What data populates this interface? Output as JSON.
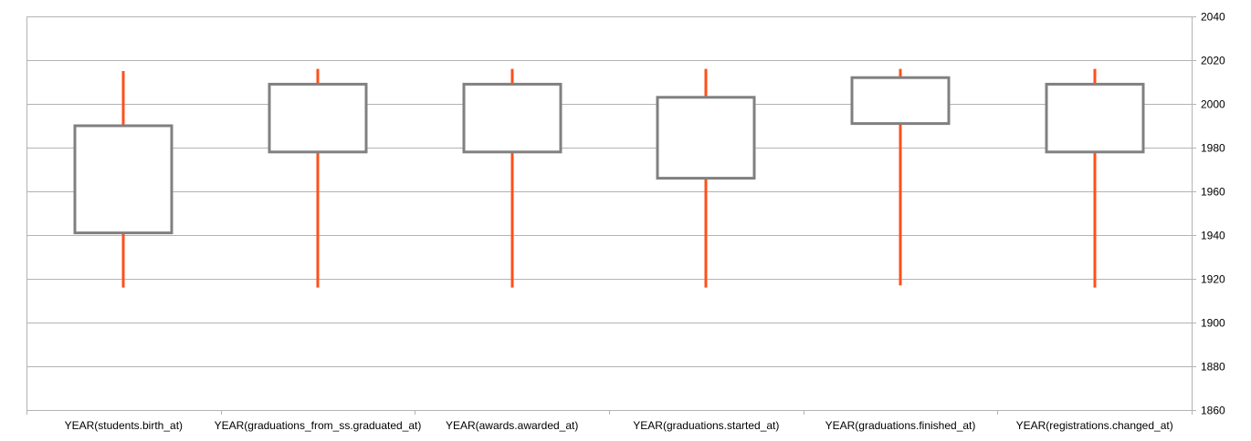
{
  "chart_data": {
    "type": "candlestick",
    "categories": [
      "YEAR(students.birth_at)",
      "YEAR(graduations_from_ss.graduated_at)",
      "YEAR(awards.awarded_at)",
      "YEAR(graduations.started_at)",
      "YEAR(graduations.finished_at)",
      "YEAR(registrations.changed_at)"
    ],
    "series": [
      {
        "low": [
          1916,
          1916,
          1916,
          1916,
          1917,
          1916
        ],
        "q1": [
          1941,
          1978,
          1978,
          1966,
          1991,
          1978
        ],
        "q3": [
          1990,
          2009,
          2009,
          2003,
          2012,
          2009
        ],
        "high": [
          2015,
          2016,
          2016,
          2016,
          2016,
          2016
        ]
      }
    ],
    "yaxis": {
      "position": "right",
      "ylim": [
        1860,
        2040
      ],
      "ticks": [
        1860,
        1880,
        1900,
        1920,
        1940,
        1960,
        1980,
        2000,
        2020,
        2040
      ]
    },
    "grid": "horizontal-major",
    "colors": {
      "box": "#808080",
      "whisker": "#ff4f1a",
      "grid": "#b3b3b3"
    }
  }
}
